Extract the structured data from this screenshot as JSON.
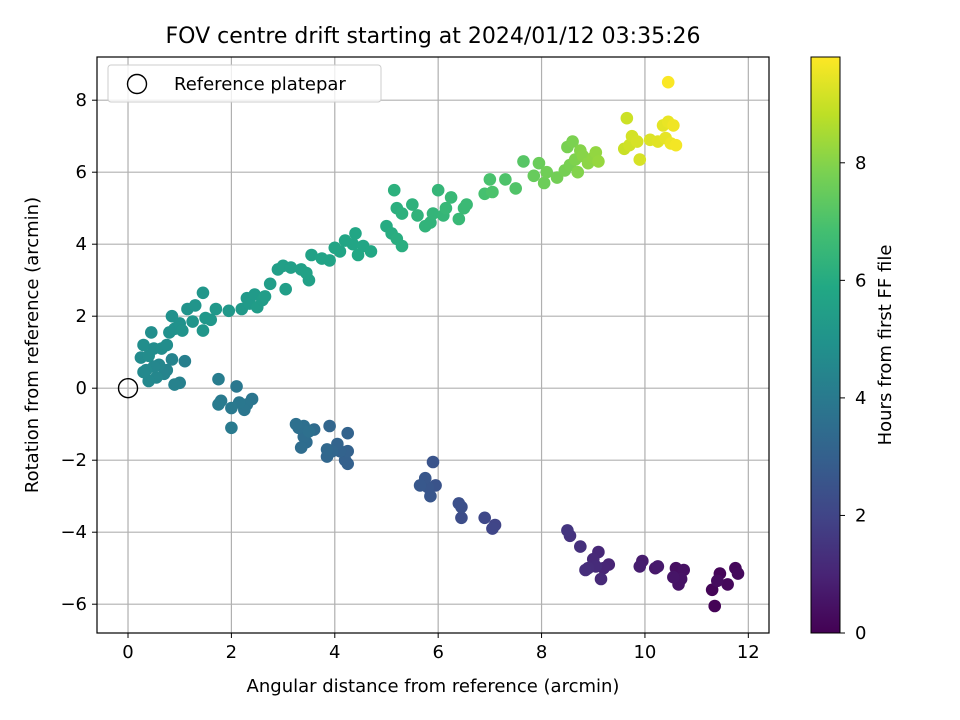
{
  "chart_data": {
    "type": "scatter",
    "title": "FOV centre drift starting at 2024/01/12 03:35:26",
    "xlabel": "Angular distance from reference (arcmin)",
    "ylabel": "Rotation from reference (arcmin)",
    "xlim": [
      -0.6,
      12.4
    ],
    "ylim": [
      -6.8,
      9.2
    ],
    "xticks": [
      0,
      2,
      4,
      6,
      8,
      10,
      12
    ],
    "yticks": [
      -6,
      -4,
      -2,
      0,
      2,
      4,
      6,
      8
    ],
    "grid": true,
    "legend": {
      "placement": "top-left",
      "entries": [
        "Reference platepar"
      ]
    },
    "reference_point": {
      "x": 0,
      "y": 0,
      "label": "Reference platepar"
    },
    "colorbar": {
      "label": "Hours from first FF file",
      "colormap": "viridis",
      "range": [
        0,
        9.8
      ],
      "ticks": [
        0,
        2,
        4,
        6,
        8
      ]
    },
    "series": [
      {
        "color_by": "hours",
        "points": [
          {
            "x": 11.35,
            "y": -6.05,
            "h": 0.05
          },
          {
            "x": 11.3,
            "y": -5.6,
            "h": 0.1
          },
          {
            "x": 11.45,
            "y": -5.15,
            "h": 0.15
          },
          {
            "x": 11.6,
            "y": -5.45,
            "h": 0.2
          },
          {
            "x": 11.75,
            "y": -5.0,
            "h": 0.2
          },
          {
            "x": 11.8,
            "y": -5.15,
            "h": 0.25
          },
          {
            "x": 11.4,
            "y": -5.35,
            "h": 0.3
          },
          {
            "x": 10.6,
            "y": -5.0,
            "h": 0.4
          },
          {
            "x": 10.75,
            "y": -5.05,
            "h": 0.45
          },
          {
            "x": 10.65,
            "y": -5.45,
            "h": 0.5
          },
          {
            "x": 10.7,
            "y": -5.3,
            "h": 0.5
          },
          {
            "x": 10.55,
            "y": -5.25,
            "h": 0.55
          },
          {
            "x": 10.2,
            "y": -5.0,
            "h": 0.65
          },
          {
            "x": 10.25,
            "y": -4.95,
            "h": 0.7
          },
          {
            "x": 9.95,
            "y": -4.8,
            "h": 0.75
          },
          {
            "x": 9.9,
            "y": -4.95,
            "h": 0.8
          },
          {
            "x": 9.3,
            "y": -4.9,
            "h": 1.0
          },
          {
            "x": 9.2,
            "y": -5.0,
            "h": 1.05
          },
          {
            "x": 9.1,
            "y": -4.55,
            "h": 1.1
          },
          {
            "x": 9.0,
            "y": -4.75,
            "h": 1.15
          },
          {
            "x": 9.15,
            "y": -5.3,
            "h": 1.15
          },
          {
            "x": 9.05,
            "y": -4.95,
            "h": 1.2
          },
          {
            "x": 8.9,
            "y": -5.0,
            "h": 1.25
          },
          {
            "x": 8.85,
            "y": -5.05,
            "h": 1.3
          },
          {
            "x": 8.75,
            "y": -4.4,
            "h": 1.35
          },
          {
            "x": 8.55,
            "y": -4.1,
            "h": 1.45
          },
          {
            "x": 8.5,
            "y": -3.95,
            "h": 1.5
          },
          {
            "x": 7.1,
            "y": -3.8,
            "h": 2.0
          },
          {
            "x": 7.05,
            "y": -3.9,
            "h": 2.05
          },
          {
            "x": 6.9,
            "y": -3.6,
            "h": 2.1
          },
          {
            "x": 6.45,
            "y": -3.6,
            "h": 2.3
          },
          {
            "x": 6.45,
            "y": -3.3,
            "h": 2.35
          },
          {
            "x": 6.4,
            "y": -3.2,
            "h": 2.4
          },
          {
            "x": 5.95,
            "y": -2.7,
            "h": 2.5
          },
          {
            "x": 5.9,
            "y": -2.05,
            "h": 2.55
          },
          {
            "x": 5.85,
            "y": -3.0,
            "h": 2.6
          },
          {
            "x": 5.8,
            "y": -2.75,
            "h": 2.6
          },
          {
            "x": 5.75,
            "y": -2.5,
            "h": 2.65
          },
          {
            "x": 5.65,
            "y": -2.7,
            "h": 2.7
          },
          {
            "x": 4.25,
            "y": -2.1,
            "h": 3.0
          },
          {
            "x": 4.2,
            "y": -2.0,
            "h": 3.0
          },
          {
            "x": 4.25,
            "y": -1.75,
            "h": 3.05
          },
          {
            "x": 4.25,
            "y": -1.25,
            "h": 3.1
          },
          {
            "x": 4.1,
            "y": -1.75,
            "h": 3.1
          },
          {
            "x": 4.05,
            "y": -1.55,
            "h": 3.15
          },
          {
            "x": 3.95,
            "y": -1.75,
            "h": 3.2
          },
          {
            "x": 3.9,
            "y": -1.05,
            "h": 3.2
          },
          {
            "x": 3.85,
            "y": -1.9,
            "h": 3.25
          },
          {
            "x": 3.85,
            "y": -1.7,
            "h": 3.3
          },
          {
            "x": 3.6,
            "y": -1.15,
            "h": 3.4
          },
          {
            "x": 3.45,
            "y": -1.5,
            "h": 3.45
          },
          {
            "x": 3.4,
            "y": -1.35,
            "h": 3.5
          },
          {
            "x": 3.35,
            "y": -1.65,
            "h": 3.5
          },
          {
            "x": 3.4,
            "y": -1.05,
            "h": 3.55
          },
          {
            "x": 3.3,
            "y": -1.1,
            "h": 3.55
          },
          {
            "x": 3.25,
            "y": -1.0,
            "h": 3.6
          },
          {
            "x": 3.5,
            "y": -1.2,
            "h": 3.6
          },
          {
            "x": 2.4,
            "y": -0.3,
            "h": 3.8
          },
          {
            "x": 2.3,
            "y": -0.45,
            "h": 3.85
          },
          {
            "x": 2.25,
            "y": -0.6,
            "h": 3.85
          },
          {
            "x": 2.1,
            "y": 0.05,
            "h": 3.9
          },
          {
            "x": 2.15,
            "y": -0.4,
            "h": 3.9
          },
          {
            "x": 2.0,
            "y": -0.55,
            "h": 3.95
          },
          {
            "x": 2.0,
            "y": -1.1,
            "h": 4.0
          },
          {
            "x": 1.8,
            "y": -0.35,
            "h": 4.0
          },
          {
            "x": 1.75,
            "y": -0.45,
            "h": 4.05
          },
          {
            "x": 1.75,
            "y": 0.25,
            "h": 4.1
          },
          {
            "x": 1.1,
            "y": 0.75,
            "h": 4.2
          },
          {
            "x": 1.0,
            "y": 0.15,
            "h": 4.25
          },
          {
            "x": 0.9,
            "y": 0.1,
            "h": 4.3
          },
          {
            "x": 0.85,
            "y": 0.8,
            "h": 4.35
          },
          {
            "x": 0.7,
            "y": 0.4,
            "h": 4.4
          },
          {
            "x": 0.75,
            "y": 0.5,
            "h": 4.4
          },
          {
            "x": 0.6,
            "y": 0.65,
            "h": 4.45
          },
          {
            "x": 0.55,
            "y": 0.3,
            "h": 4.5
          },
          {
            "x": 0.5,
            "y": 0.6,
            "h": 4.5
          },
          {
            "x": 0.4,
            "y": 0.2,
            "h": 4.55
          },
          {
            "x": 0.35,
            "y": 0.5,
            "h": 4.6
          },
          {
            "x": 0.3,
            "y": 0.45,
            "h": 4.6
          },
          {
            "x": 0.25,
            "y": 0.85,
            "h": 4.65
          },
          {
            "x": 0.4,
            "y": 0.9,
            "h": 4.7
          },
          {
            "x": 0.5,
            "y": 1.1,
            "h": 4.7
          },
          {
            "x": 0.65,
            "y": 1.1,
            "h": 4.75
          },
          {
            "x": 0.75,
            "y": 1.2,
            "h": 4.75
          },
          {
            "x": 0.3,
            "y": 1.2,
            "h": 4.8
          },
          {
            "x": 0.45,
            "y": 1.55,
            "h": 4.8
          },
          {
            "x": 0.8,
            "y": 1.55,
            "h": 4.85
          },
          {
            "x": 0.9,
            "y": 1.65,
            "h": 4.9
          },
          {
            "x": 0.85,
            "y": 2.0,
            "h": 4.9
          },
          {
            "x": 1.0,
            "y": 1.8,
            "h": 4.95
          },
          {
            "x": 1.05,
            "y": 1.6,
            "h": 5.0
          },
          {
            "x": 1.15,
            "y": 2.2,
            "h": 5.0
          },
          {
            "x": 1.25,
            "y": 1.85,
            "h": 5.05
          },
          {
            "x": 1.3,
            "y": 2.3,
            "h": 5.05
          },
          {
            "x": 1.45,
            "y": 1.6,
            "h": 5.1
          },
          {
            "x": 1.45,
            "y": 2.65,
            "h": 5.1
          },
          {
            "x": 1.5,
            "y": 1.95,
            "h": 5.15
          },
          {
            "x": 1.6,
            "y": 1.9,
            "h": 5.15
          },
          {
            "x": 1.7,
            "y": 2.2,
            "h": 5.2
          },
          {
            "x": 1.95,
            "y": 2.15,
            "h": 5.2
          },
          {
            "x": 2.2,
            "y": 2.2,
            "h": 5.25
          },
          {
            "x": 2.3,
            "y": 2.5,
            "h": 5.25
          },
          {
            "x": 2.35,
            "y": 2.35,
            "h": 5.3
          },
          {
            "x": 2.45,
            "y": 2.6,
            "h": 5.3
          },
          {
            "x": 2.5,
            "y": 2.25,
            "h": 5.35
          },
          {
            "x": 2.6,
            "y": 2.45,
            "h": 5.35
          },
          {
            "x": 2.65,
            "y": 2.55,
            "h": 5.4
          },
          {
            "x": 2.75,
            "y": 2.9,
            "h": 5.4
          },
          {
            "x": 2.9,
            "y": 3.3,
            "h": 5.45
          },
          {
            "x": 3.05,
            "y": 2.75,
            "h": 5.45
          },
          {
            "x": 3.0,
            "y": 3.4,
            "h": 5.5
          },
          {
            "x": 3.15,
            "y": 3.35,
            "h": 5.5
          },
          {
            "x": 3.35,
            "y": 3.3,
            "h": 5.55
          },
          {
            "x": 3.5,
            "y": 3.0,
            "h": 5.55
          },
          {
            "x": 3.55,
            "y": 3.7,
            "h": 5.6
          },
          {
            "x": 3.45,
            "y": 3.2,
            "h": 5.6
          },
          {
            "x": 3.75,
            "y": 3.6,
            "h": 5.65
          },
          {
            "x": 3.9,
            "y": 3.55,
            "h": 5.65
          },
          {
            "x": 4.0,
            "y": 3.9,
            "h": 5.7
          },
          {
            "x": 4.1,
            "y": 3.8,
            "h": 5.7
          },
          {
            "x": 4.2,
            "y": 4.1,
            "h": 5.75
          },
          {
            "x": 4.35,
            "y": 4.0,
            "h": 5.75
          },
          {
            "x": 4.4,
            "y": 4.3,
            "h": 5.8
          },
          {
            "x": 4.55,
            "y": 3.95,
            "h": 5.8
          },
          {
            "x": 4.7,
            "y": 3.8,
            "h": 5.85
          },
          {
            "x": 4.45,
            "y": 3.7,
            "h": 5.85
          },
          {
            "x": 5.0,
            "y": 4.5,
            "h": 6.0
          },
          {
            "x": 5.1,
            "y": 4.3,
            "h": 6.05
          },
          {
            "x": 5.2,
            "y": 4.15,
            "h": 6.1
          },
          {
            "x": 5.3,
            "y": 3.95,
            "h": 6.1
          },
          {
            "x": 5.2,
            "y": 5.0,
            "h": 6.15
          },
          {
            "x": 5.3,
            "y": 4.85,
            "h": 6.2
          },
          {
            "x": 5.15,
            "y": 5.5,
            "h": 6.2
          },
          {
            "x": 5.5,
            "y": 5.1,
            "h": 6.25
          },
          {
            "x": 5.6,
            "y": 4.8,
            "h": 6.3
          },
          {
            "x": 5.75,
            "y": 4.5,
            "h": 6.35
          },
          {
            "x": 5.85,
            "y": 4.6,
            "h": 6.35
          },
          {
            "x": 5.9,
            "y": 4.85,
            "h": 6.4
          },
          {
            "x": 6.0,
            "y": 5.5,
            "h": 6.45
          },
          {
            "x": 6.1,
            "y": 4.8,
            "h": 6.45
          },
          {
            "x": 6.15,
            "y": 5.0,
            "h": 6.5
          },
          {
            "x": 6.25,
            "y": 5.3,
            "h": 6.55
          },
          {
            "x": 6.4,
            "y": 4.7,
            "h": 6.55
          },
          {
            "x": 6.5,
            "y": 5.0,
            "h": 6.6
          },
          {
            "x": 6.55,
            "y": 5.1,
            "h": 6.6
          },
          {
            "x": 6.9,
            "y": 5.4,
            "h": 6.9
          },
          {
            "x": 7.0,
            "y": 5.8,
            "h": 6.95
          },
          {
            "x": 7.05,
            "y": 5.45,
            "h": 7.0
          },
          {
            "x": 7.3,
            "y": 5.8,
            "h": 7.05
          },
          {
            "x": 7.5,
            "y": 5.55,
            "h": 7.1
          },
          {
            "x": 7.65,
            "y": 6.3,
            "h": 7.2
          },
          {
            "x": 7.85,
            "y": 5.9,
            "h": 7.5
          },
          {
            "x": 7.95,
            "y": 6.25,
            "h": 7.55
          },
          {
            "x": 8.05,
            "y": 5.7,
            "h": 7.6
          },
          {
            "x": 8.1,
            "y": 6.0,
            "h": 7.65
          },
          {
            "x": 8.3,
            "y": 5.85,
            "h": 7.7
          },
          {
            "x": 8.45,
            "y": 6.05,
            "h": 7.75
          },
          {
            "x": 8.5,
            "y": 6.7,
            "h": 7.8
          },
          {
            "x": 8.55,
            "y": 6.2,
            "h": 7.8
          },
          {
            "x": 8.6,
            "y": 6.85,
            "h": 7.85
          },
          {
            "x": 8.65,
            "y": 6.35,
            "h": 7.9
          },
          {
            "x": 8.7,
            "y": 6.0,
            "h": 7.95
          },
          {
            "x": 8.75,
            "y": 6.6,
            "h": 8.0
          },
          {
            "x": 8.8,
            "y": 6.45,
            "h": 8.05
          },
          {
            "x": 8.9,
            "y": 6.25,
            "h": 8.1
          },
          {
            "x": 9.0,
            "y": 6.4,
            "h": 8.15
          },
          {
            "x": 9.05,
            "y": 6.55,
            "h": 8.2
          },
          {
            "x": 9.1,
            "y": 6.3,
            "h": 8.25
          },
          {
            "x": 9.6,
            "y": 6.65,
            "h": 9.0
          },
          {
            "x": 9.65,
            "y": 7.5,
            "h": 9.05
          },
          {
            "x": 9.7,
            "y": 6.75,
            "h": 9.1
          },
          {
            "x": 9.75,
            "y": 7.0,
            "h": 9.15
          },
          {
            "x": 9.85,
            "y": 6.85,
            "h": 9.2
          },
          {
            "x": 9.9,
            "y": 6.35,
            "h": 9.2
          },
          {
            "x": 10.1,
            "y": 6.9,
            "h": 9.3
          },
          {
            "x": 10.25,
            "y": 6.85,
            "h": 9.35
          },
          {
            "x": 10.35,
            "y": 7.3,
            "h": 9.4
          },
          {
            "x": 10.4,
            "y": 6.95,
            "h": 9.45
          },
          {
            "x": 10.45,
            "y": 7.4,
            "h": 9.5
          },
          {
            "x": 10.5,
            "y": 6.8,
            "h": 9.55
          },
          {
            "x": 10.55,
            "y": 7.3,
            "h": 9.6
          },
          {
            "x": 10.6,
            "y": 6.75,
            "h": 9.65
          },
          {
            "x": 10.45,
            "y": 8.5,
            "h": 9.75
          }
        ]
      }
    ]
  }
}
